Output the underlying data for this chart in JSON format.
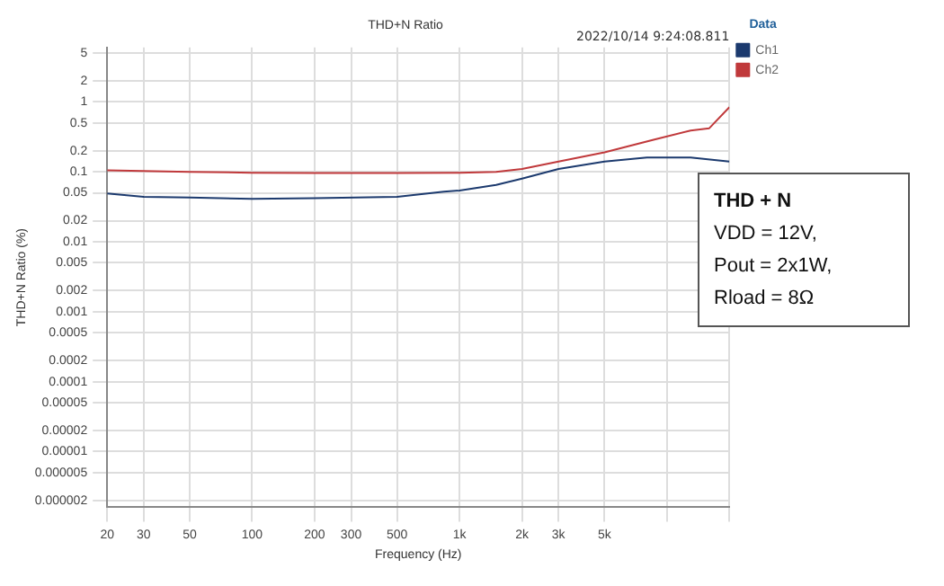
{
  "chart_data": {
    "type": "line",
    "title": "THD+N Ratio",
    "xlabel": "Frequency (Hz)",
    "ylabel": "THD+N Ratio (%)",
    "legend_title": "Data",
    "annotations": [
      "2022/10/14 9:24:08.811",
      "THD + N",
      "VDD = 12V,",
      "Pout = 2x1W,",
      "Rload = 8Ω"
    ],
    "log": "xy",
    "grid": true,
    "legend": "right",
    "marker": "none",
    "line_style": "solid",
    "xlim": [
      20,
      20000
    ],
    "ylim": [
      1.6e-06,
      6
    ],
    "xticks": [
      20,
      30,
      50,
      100,
      200,
      300,
      500,
      {
        "value": 1000,
        "label": "1k"
      },
      {
        "value": 2000,
        "label": "2k"
      },
      {
        "value": 3000,
        "label": "3k"
      },
      {
        "value": 5000,
        "label": "5k"
      },
      {
        "value": 10000,
        "label": null
      },
      {
        "value": 20000,
        "label": null
      }
    ],
    "yticks": [
      5,
      2,
      1,
      0.5,
      0.2,
      0.1,
      0.05,
      0.02,
      0.01,
      0.005,
      0.002,
      0.001,
      0.0005,
      0.0002,
      0.0001,
      {
        "value": 5e-05,
        "label": "0.00005"
      },
      {
        "value": 2e-05,
        "label": "0.00002"
      },
      {
        "value": 1e-05,
        "label": "0.00001"
      },
      {
        "value": 5e-06,
        "label": "0.000005"
      },
      {
        "value": 2e-06,
        "label": "0.000002"
      }
    ],
    "series": [
      {
        "name": "Ch1",
        "color": "#1c3a6e",
        "x": [
          20,
          30,
          50,
          100,
          200,
          500,
          840,
          1000,
          1500,
          2000,
          3000,
          5000,
          8000,
          13000,
          20000
        ],
        "values": [
          0.049,
          0.044,
          0.043,
          0.041,
          0.042,
          0.044,
          0.052,
          0.054,
          0.065,
          0.08,
          0.11,
          0.14,
          0.16,
          0.16,
          0.14
        ]
      },
      {
        "name": "Ch2",
        "color": "#c0393b",
        "x": [
          20,
          50,
          100,
          200,
          500,
          1000,
          1500,
          2000,
          3000,
          5000,
          8700,
          13000,
          16000,
          20000
        ],
        "values": [
          0.105,
          0.1,
          0.097,
          0.096,
          0.096,
          0.097,
          0.1,
          0.11,
          0.14,
          0.19,
          0.29,
          0.39,
          0.42,
          0.84
        ]
      }
    ]
  }
}
